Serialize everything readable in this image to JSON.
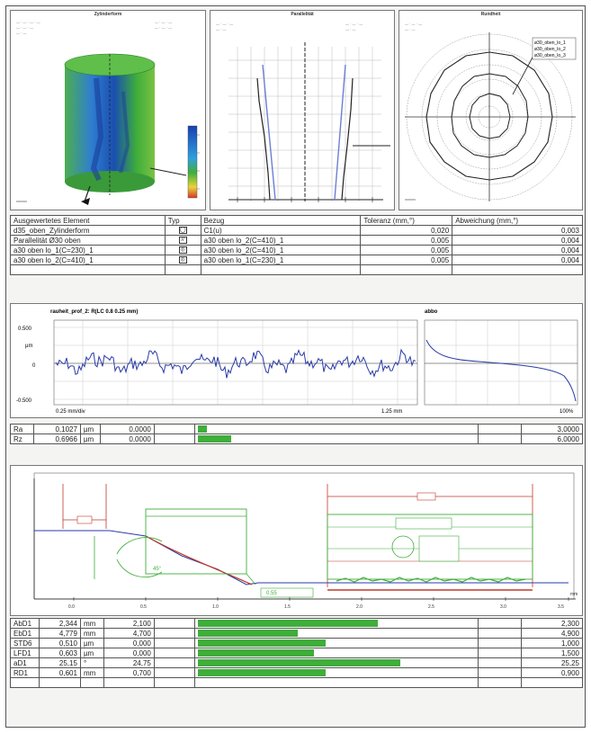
{
  "panels": {
    "cylinder_title": "Zylinderform",
    "parallel_title": "Parallelität",
    "polar_title": "Rundheit",
    "polar_legend": [
      "ø30_oben_lo_1",
      "ø30_oben_lo_2",
      "ø30_oben_lo_3"
    ]
  },
  "tolerance_table": {
    "headers": [
      "Ausgewertetes Element",
      "Typ",
      "Bezug",
      "Toleranz (mm,°)",
      "Abweichung (mm,°)"
    ],
    "rows": [
      {
        "element": "d35_oben_Zylinderform",
        "typ": "◯",
        "bezug": "C1(u)",
        "toleranz": "0,020",
        "abweichung": "0,003"
      },
      {
        "element": "Parallelität Ø30 oben",
        "typ": "//",
        "bezug": "a30 oben lo_2(C=410)_1",
        "toleranz": "0,005",
        "abweichung": "0,004"
      },
      {
        "element": "a30 oben lo_1(C=230)_1",
        "typ": "◎",
        "bezug": "a30 oben lo_2(C=410)_1",
        "toleranz": "0,005",
        "abweichung": "0,004"
      },
      {
        "element": "a30 oben lo_2(C=410)_1",
        "typ": "◎",
        "bezug": "a30 oben lo_1(C=230)_1",
        "toleranz": "0,005",
        "abweichung": "0,004"
      }
    ]
  },
  "roughness": {
    "title": "rauheit_prof_2: R(LC 0.8 0.25 mm)",
    "abbott_title": "abbo",
    "y_top": "0.500",
    "y_unit": "µm",
    "y_zero": "0",
    "y_bottom": "-0.500",
    "x_left": "0.25 mm/div",
    "x_right": "1.25 mm",
    "abbott_x_right": "100%"
  },
  "roughness_table": [
    {
      "name": "Ra",
      "value": "0,1027",
      "unit": "µm",
      "lower": "0,0000",
      "fraction": 0.034,
      "upper": "3,0000"
    },
    {
      "name": "Rz",
      "value": "0,6966",
      "unit": "µm",
      "lower": "0,0000",
      "fraction": 0.12,
      "upper": "6,0000"
    }
  ],
  "contour": {
    "angle_label": "45°",
    "dimension_label": "0.55",
    "x_ticks": [
      "0.0",
      "0.5",
      "1.0",
      "1.5",
      "2.0",
      "2.5",
      "3.0",
      "3.5"
    ],
    "x_unit": "mm"
  },
  "contour_table": [
    {
      "name": "AbD1",
      "value": "2,344",
      "unit": "mm",
      "lower": "2,100",
      "fraction": 0.65,
      "upper": "2,300"
    },
    {
      "name": "EbD1",
      "value": "4,779",
      "unit": "mm",
      "lower": "4,700",
      "fraction": 0.36,
      "upper": "4,900"
    },
    {
      "name": "STD6",
      "value": "0,510",
      "unit": "µm",
      "lower": "0,000",
      "fraction": 0.46,
      "upper": "1,000"
    },
    {
      "name": "LFD1",
      "value": "0,603",
      "unit": "µm",
      "lower": "0,000",
      "fraction": 0.42,
      "upper": "1,500"
    },
    {
      "name": "aD1",
      "value": "25,15",
      "unit": "°",
      "lower": "24,75",
      "fraction": 0.73,
      "upper": "25,25"
    },
    {
      "name": "RD1",
      "value": "0,601",
      "unit": "mm",
      "lower": "0,700",
      "fraction": 0.46,
      "upper": "0,900"
    }
  ],
  "colors": {
    "accent_green": "#3fae3a",
    "profile_blue": "#2a3ba8",
    "contour_red": "#c0392b"
  }
}
